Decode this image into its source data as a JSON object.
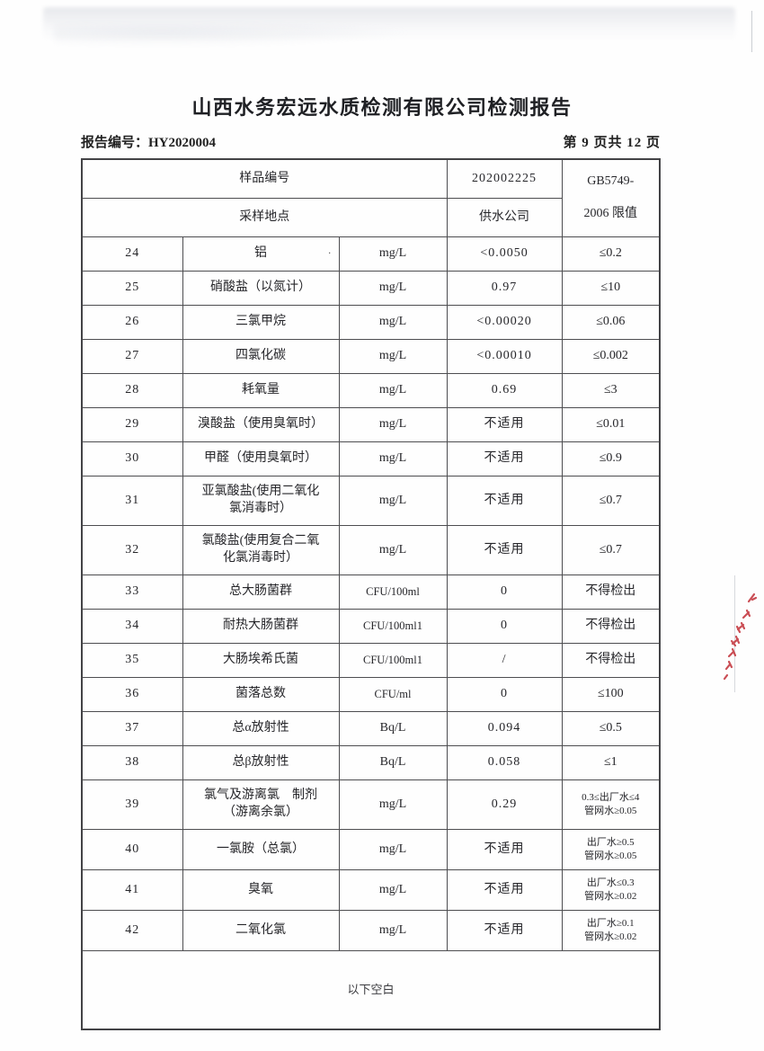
{
  "page": {
    "title": "山西水务宏远水质检测有限公司检测报告",
    "report_no_label": "报告编号：",
    "report_no": "HY2020004",
    "page_indicator": "第 9 页共 12 页",
    "artifact_dot": "."
  },
  "table": {
    "header": {
      "sample_no_label": "样品编号",
      "sample_no": "202002225",
      "standard_line1": "GB5749-",
      "standard_line2": "2006 限值",
      "location_label": "采样地点",
      "location": "供水公司"
    },
    "rows": [
      {
        "no": "24",
        "name": "铝",
        "unit": "mg/L",
        "value": "<0.0050",
        "limit": "≤0.2",
        "h": "r-std",
        "small_limit": false,
        "small_unit": false
      },
      {
        "no": "25",
        "name": "硝酸盐（以氮计）",
        "unit": "mg/L",
        "value": "0.97",
        "limit": "≤10",
        "h": "r-std",
        "small_limit": false,
        "small_unit": false
      },
      {
        "no": "26",
        "name": "三氯甲烷",
        "unit": "mg/L",
        "value": "<0.00020",
        "limit": "≤0.06",
        "h": "r-std",
        "small_limit": false,
        "small_unit": false
      },
      {
        "no": "27",
        "name": "四氯化碳",
        "unit": "mg/L",
        "value": "<0.00010",
        "limit": "≤0.002",
        "h": "r-std",
        "small_limit": false,
        "small_unit": false
      },
      {
        "no": "28",
        "name": "耗氧量",
        "unit": "mg/L",
        "value": "0.69",
        "limit": "≤3",
        "h": "r-std",
        "small_limit": false,
        "small_unit": false
      },
      {
        "no": "29",
        "name": "溴酸盐（使用臭氧时）",
        "unit": "mg/L",
        "value": "不适用",
        "limit": "≤0.01",
        "h": "r-std",
        "small_limit": false,
        "small_unit": false
      },
      {
        "no": "30",
        "name": "甲醛（使用臭氧时）",
        "unit": "mg/L",
        "value": "不适用",
        "limit": "≤0.9",
        "h": "r-std",
        "small_limit": false,
        "small_unit": false
      },
      {
        "no": "31",
        "name": "亚氯酸盐(使用二氧化\n氯消毒时）",
        "unit": "mg/L",
        "value": "不适用",
        "limit": "≤0.7",
        "h": "r-tall",
        "small_limit": false,
        "small_unit": false
      },
      {
        "no": "32",
        "name": "氯酸盐(使用复合二氧\n化氯消毒时）",
        "unit": "mg/L",
        "value": "不适用",
        "limit": "≤0.7",
        "h": "r-tall",
        "small_limit": false,
        "small_unit": false
      },
      {
        "no": "33",
        "name": "总大肠菌群",
        "unit": "CFU/100ml",
        "value": "0",
        "limit": "不得检出",
        "h": "r-std",
        "small_limit": false,
        "small_unit": true
      },
      {
        "no": "34",
        "name": "耐热大肠菌群",
        "unit": "CFU/100ml1",
        "value": "0",
        "limit": "不得检出",
        "h": "r-std",
        "small_limit": false,
        "small_unit": true
      },
      {
        "no": "35",
        "name": "大肠埃希氏菌",
        "unit": "CFU/100ml1",
        "value": "/",
        "limit": "不得检出",
        "h": "r-std",
        "small_limit": false,
        "small_unit": true
      },
      {
        "no": "36",
        "name": "菌落总数",
        "unit": "CFU/ml",
        "value": "0",
        "limit": "≤100",
        "h": "r-std",
        "small_limit": false,
        "small_unit": true
      },
      {
        "no": "37",
        "name": "总α放射性",
        "unit": "Bq/L",
        "value": "0.094",
        "limit": "≤0.5",
        "h": "r-std",
        "small_limit": false,
        "small_unit": false
      },
      {
        "no": "38",
        "name": "总β放射性",
        "unit": "Bq/L",
        "value": "0.058",
        "limit": "≤1",
        "h": "r-std",
        "small_limit": false,
        "small_unit": false
      },
      {
        "no": "39",
        "name": "氯气及游离氯　制剂\n（游离余氯）",
        "unit": "mg/L",
        "value": "0.29",
        "limit": "0.3≤出厂水≤4\n管网水≥0.05",
        "h": "r-tall",
        "small_limit": true,
        "small_unit": false
      },
      {
        "no": "40",
        "name": "一氯胺（总氯）",
        "unit": "mg/L",
        "value": "不适用",
        "limit": "出厂水≥0.5\n管网水≥0.05",
        "h": "r-med",
        "small_limit": true,
        "small_unit": false
      },
      {
        "no": "41",
        "name": "臭氧",
        "unit": "mg/L",
        "value": "不适用",
        "limit": "出厂水≤0.3\n管网水≥0.02",
        "h": "r-med",
        "small_limit": true,
        "small_unit": false
      },
      {
        "no": "42",
        "name": "二氧化氯",
        "unit": "mg/L",
        "value": "不适用",
        "limit": "出厂水≥0.1\n管网水≥0.02",
        "h": "r-med",
        "small_limit": true,
        "small_unit": false
      }
    ],
    "footer_note": "以下空白"
  },
  "stamp": {
    "icon": "red-stamp-fragment",
    "color": "#c23038"
  }
}
